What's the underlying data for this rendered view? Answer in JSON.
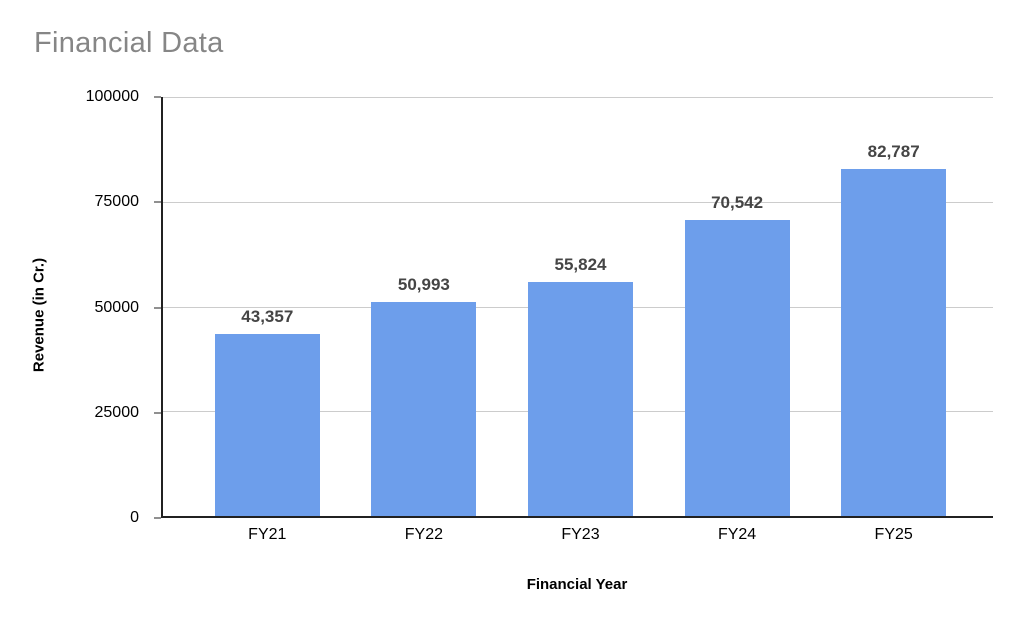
{
  "chart": {
    "title": "Financial Data",
    "x_axis_title": "Financial Year",
    "y_axis_title": "Revenue (in Cr.)"
  },
  "chart_data": {
    "type": "bar",
    "title": "Financial Data",
    "xlabel": "Financial Year",
    "ylabel": "Revenue (in Cr.)",
    "categories": [
      "FY21",
      "FY22",
      "FY23",
      "FY24",
      "FY25"
    ],
    "values": [
      43357,
      50993,
      55824,
      70542,
      82787
    ],
    "value_labels": [
      "43,357",
      "50,993",
      "55,824",
      "70,542",
      "82,787"
    ],
    "ylim": [
      0,
      100000
    ],
    "yticks": [
      0,
      25000,
      50000,
      75000,
      100000
    ],
    "ytick_labels": [
      "0",
      "25000",
      "50000",
      "75000",
      "100000"
    ],
    "grid": true,
    "legend_position": "none",
    "colors": {
      "bar_color": "#6d9eeb",
      "grid_color": "#cccccc",
      "axis_color": "#212121",
      "title_color": "#868686",
      "value_label_color": "#454545",
      "tick_label_color": "#000000",
      "bg_color": "#ffffff"
    }
  }
}
